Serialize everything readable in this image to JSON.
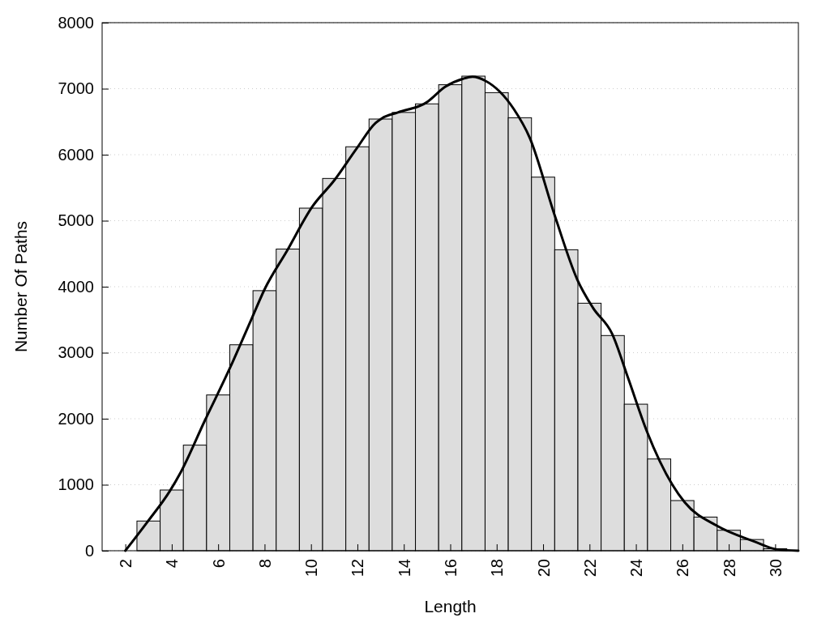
{
  "chart_data": {
    "type": "histogram",
    "xlabel": "Length",
    "ylabel": "Number Of Paths",
    "xlim": [
      1,
      31
    ],
    "xticks": [
      2,
      4,
      6,
      8,
      10,
      12,
      14,
      16,
      18,
      20,
      22,
      24,
      26,
      28,
      30
    ],
    "ylim": [
      0,
      8000
    ],
    "yticks": [
      0,
      1000,
      2000,
      3000,
      4000,
      5000,
      6000,
      7000,
      8000
    ],
    "grid": "y",
    "series": [
      {
        "color": "#dddddd",
        "bins": [
          2.5,
          3.5,
          4.5,
          5.5,
          6.5,
          7.5,
          8.5,
          9.5,
          10.5,
          11.5,
          12.5,
          13.5,
          14.5,
          15.5,
          16.5,
          17.5,
          18.5,
          19.5,
          20.5,
          21.5,
          22.5,
          23.5,
          24.5,
          25.5,
          26.5,
          27.5,
          28.5,
          29.5,
          30.5
        ],
        "values": [
          450,
          920,
          1600,
          2360,
          3120,
          3940,
          4570,
          5190,
          5640,
          6120,
          6540,
          6640,
          6770,
          7060,
          7190,
          6940,
          6560,
          5660,
          4560,
          3750,
          3260,
          2220,
          1390,
          760,
          510,
          310,
          170,
          30
        ]
      },
      {
        "type": "line",
        "color": "#000000",
        "x": [
          2,
          2.96,
          3.91,
          4.39,
          5.41,
          6.51,
          7.46,
          8.0,
          8.96,
          10.05,
          11.0,
          11.96,
          12.78,
          13.05,
          13.74,
          14.97,
          15.79,
          16.55,
          16.96,
          17.51,
          18.74,
          19.42,
          20.51,
          21.47,
          22.15,
          22.97,
          23.66,
          24.47,
          25.57,
          26.11,
          27.48,
          29.1,
          30.08,
          31
        ],
        "values": [
          0,
          440,
          900,
          1190,
          1960,
          2770,
          3530,
          3960,
          4540,
          5210,
          5610,
          6090,
          6480,
          6550,
          6640,
          6790,
          7030,
          7150,
          7180,
          7120,
          6690,
          6260,
          5070,
          4110,
          3680,
          3290,
          2620,
          1810,
          1000,
          730,
          380,
          140,
          20,
          0
        ]
      }
    ]
  }
}
